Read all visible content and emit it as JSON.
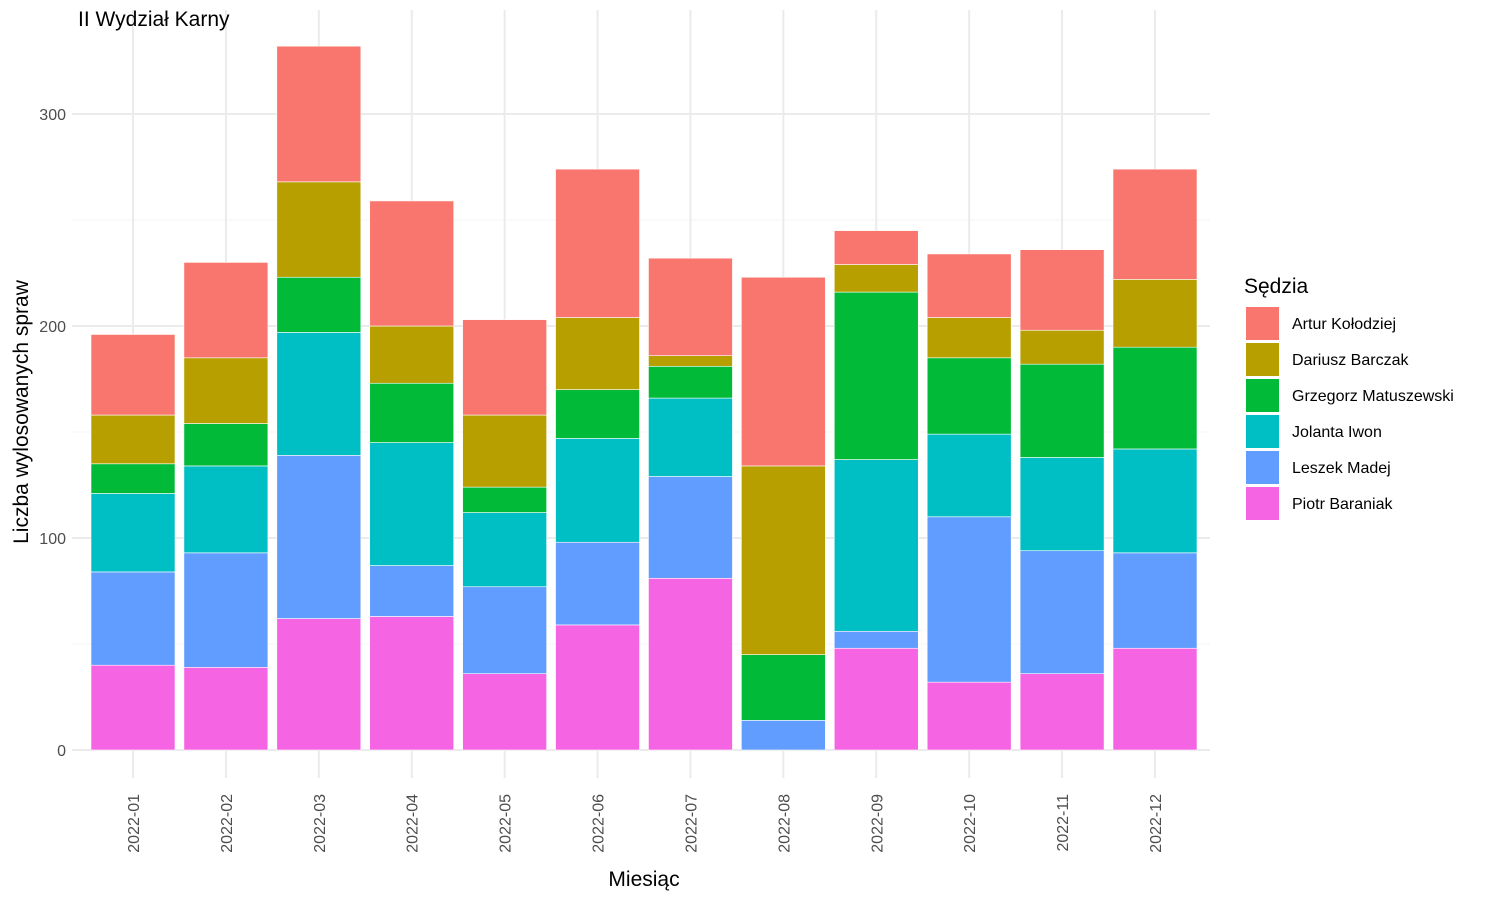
{
  "chart_data": {
    "type": "bar",
    "stacked": true,
    "title": "II Wydział Karny",
    "xlabel": "Miesiąc",
    "ylabel": "Liczba wylosowanych spraw",
    "ylim": [
      0,
      340
    ],
    "yticks": [
      0,
      100,
      200,
      300
    ],
    "grid": true,
    "legend_position": "right",
    "legend_title": "Sędzia",
    "categories": [
      "2022-01",
      "2022-02",
      "2022-03",
      "2022-04",
      "2022-05",
      "2022-06",
      "2022-07",
      "2022-08",
      "2022-09",
      "2022-10",
      "2022-11",
      "2022-12"
    ],
    "series": [
      {
        "name": "Piotr Baraniak",
        "color": "#F564E3",
        "values": [
          40,
          39,
          62,
          63,
          36,
          59,
          81,
          0,
          48,
          32,
          36,
          48
        ]
      },
      {
        "name": "Leszek Madej",
        "color": "#619CFF",
        "values": [
          44,
          54,
          77,
          24,
          41,
          39,
          48,
          14,
          8,
          78,
          58,
          45
        ]
      },
      {
        "name": "Jolanta Iwon",
        "color": "#00BFC4",
        "values": [
          37,
          41,
          58,
          58,
          35,
          49,
          37,
          0,
          81,
          39,
          44,
          49
        ]
      },
      {
        "name": "Grzegorz Matuszewski",
        "color": "#00BA38",
        "values": [
          14,
          20,
          26,
          28,
          12,
          23,
          15,
          31,
          79,
          36,
          44,
          48
        ]
      },
      {
        "name": "Dariusz Barczak",
        "color": "#B79F00",
        "values": [
          23,
          31,
          45,
          27,
          34,
          34,
          5,
          89,
          13,
          19,
          16,
          32
        ]
      },
      {
        "name": "Artur Kołodziej",
        "color": "#F8766D",
        "values": [
          38,
          45,
          64,
          59,
          45,
          70,
          46,
          89,
          16,
          30,
          38,
          52
        ]
      }
    ],
    "legend_order": [
      "Artur Kołodziej",
      "Dariusz Barczak",
      "Grzegorz Matuszewski",
      "Jolanta Iwon",
      "Leszek Madej",
      "Piotr Baraniak"
    ]
  }
}
